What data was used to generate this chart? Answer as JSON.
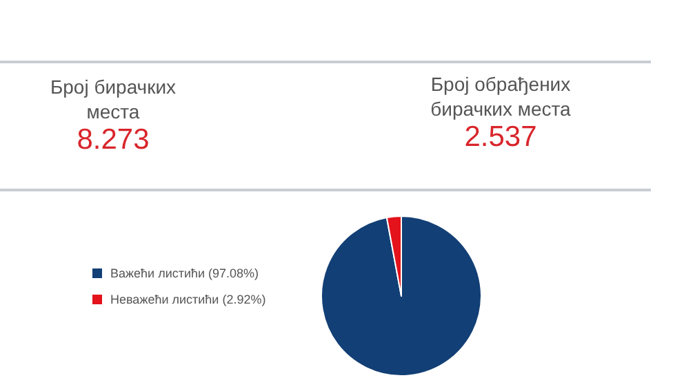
{
  "chart_data": [
    {
      "type": "other",
      "annotations": [
        "Број бирачких места",
        "8.273",
        "Број обрађених бирачких места",
        "2.537"
      ]
    },
    {
      "type": "pie",
      "categories": [
        "Важећи листићи (97.08%)",
        "Неважећи листићи (2.92%)"
      ],
      "values": [
        97.08,
        2.92
      ],
      "colors": [
        "#123f75",
        "#e3121b"
      ],
      "legend": "left"
    }
  ]
}
